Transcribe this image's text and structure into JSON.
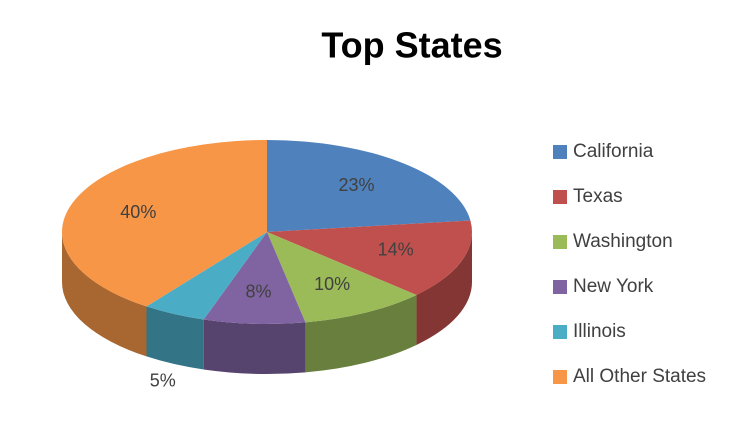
{
  "chart_data": {
    "type": "pie3d",
    "title": "Top States",
    "categories": [
      "California",
      "Texas",
      "Washington",
      "New York",
      "Illinois",
      "All Other States"
    ],
    "values": [
      23,
      14,
      10,
      8,
      5,
      40
    ],
    "value_labels": [
      "23%",
      "14%",
      "10%",
      "8%",
      "5%",
      "40%"
    ],
    "colors": [
      "#4f81bd",
      "#c0504d",
      "#9bbb59",
      "#8064a2",
      "#4bacc6",
      "#f79646"
    ],
    "legend": "right"
  }
}
